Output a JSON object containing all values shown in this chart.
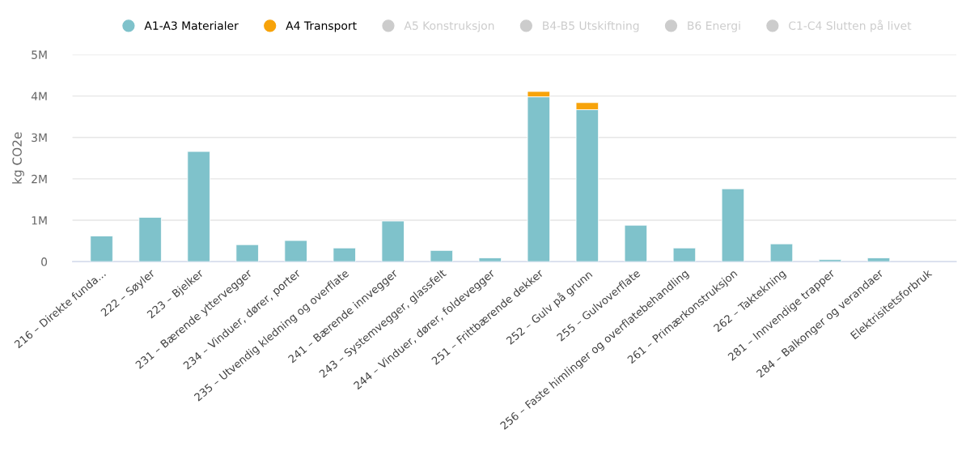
{
  "chart_data": {
    "type": "bar",
    "stacked": true,
    "ylabel": "kg CO2e",
    "categories": [
      "216 – Direkte funda...",
      "222 – Søyler",
      "223 – Bjelker",
      "231 – Bærende yttervegger",
      "234 – Vinduer, dører, porter",
      "235 – Utvendig kledning og overflate",
      "241 – Bærende innvegger",
      "243 – Systemvegger, glassfelt",
      "244 – Vinduer, dører, foldevegger",
      "251 – Frittbærende dekker",
      "252 – Gulv på grunn",
      "255 – Gulvoverflate",
      "256 – Faste himlinger og overflatebehandling",
      "261 – Primærkonstruksjon",
      "262 – Taktekning",
      "281 – Innvendige trapper",
      "284 – Balkonger og verandaer",
      "Elektrisitetsforbruk"
    ],
    "series": [
      {
        "name": "A1-A3 Materialer",
        "color": "#7fc2cb",
        "values": [
          620000,
          1070000,
          2660000,
          410000,
          510000,
          330000,
          980000,
          270000,
          90000,
          3980000,
          3670000,
          880000,
          330000,
          1760000,
          430000,
          50000,
          90000,
          null
        ]
      },
      {
        "name": "A4 Transport",
        "color": "#f7a30a",
        "values": [
          null,
          null,
          null,
          null,
          null,
          null,
          null,
          null,
          null,
          130000,
          170000,
          null,
          null,
          null,
          null,
          null,
          null,
          null
        ]
      },
      {
        "name": "A5 Konstruksjon",
        "color": "#cccccc",
        "values": [
          null,
          null,
          null,
          null,
          null,
          null,
          null,
          null,
          null,
          null,
          null,
          null,
          null,
          null,
          null,
          null,
          null,
          null
        ]
      },
      {
        "name": "B4-B5 Utskiftning",
        "color": "#cccccc",
        "values": [
          null,
          null,
          null,
          null,
          null,
          null,
          null,
          null,
          null,
          null,
          null,
          null,
          null,
          null,
          null,
          null,
          null,
          null
        ]
      },
      {
        "name": "B6 Energi",
        "color": "#cccccc",
        "values": [
          null,
          null,
          null,
          null,
          null,
          null,
          null,
          null,
          null,
          null,
          null,
          null,
          null,
          null,
          null,
          null,
          null,
          null
        ]
      },
      {
        "name": "C1-C4 Slutten på livet",
        "color": "#cccccc",
        "values": [
          null,
          null,
          null,
          null,
          null,
          null,
          null,
          null,
          null,
          null,
          null,
          null,
          null,
          null,
          null,
          null,
          null,
          null
        ]
      }
    ],
    "ylim": [
      0,
      5000000
    ],
    "yticks": [
      {
        "value": 0,
        "label": "0"
      },
      {
        "value": 1000000,
        "label": "1M"
      },
      {
        "value": 2000000,
        "label": "2M"
      },
      {
        "value": 3000000,
        "label": "3M"
      },
      {
        "value": 4000000,
        "label": "4M"
      },
      {
        "value": 5000000,
        "label": "5M"
      }
    ],
    "grid": "y",
    "legend": "top"
  }
}
